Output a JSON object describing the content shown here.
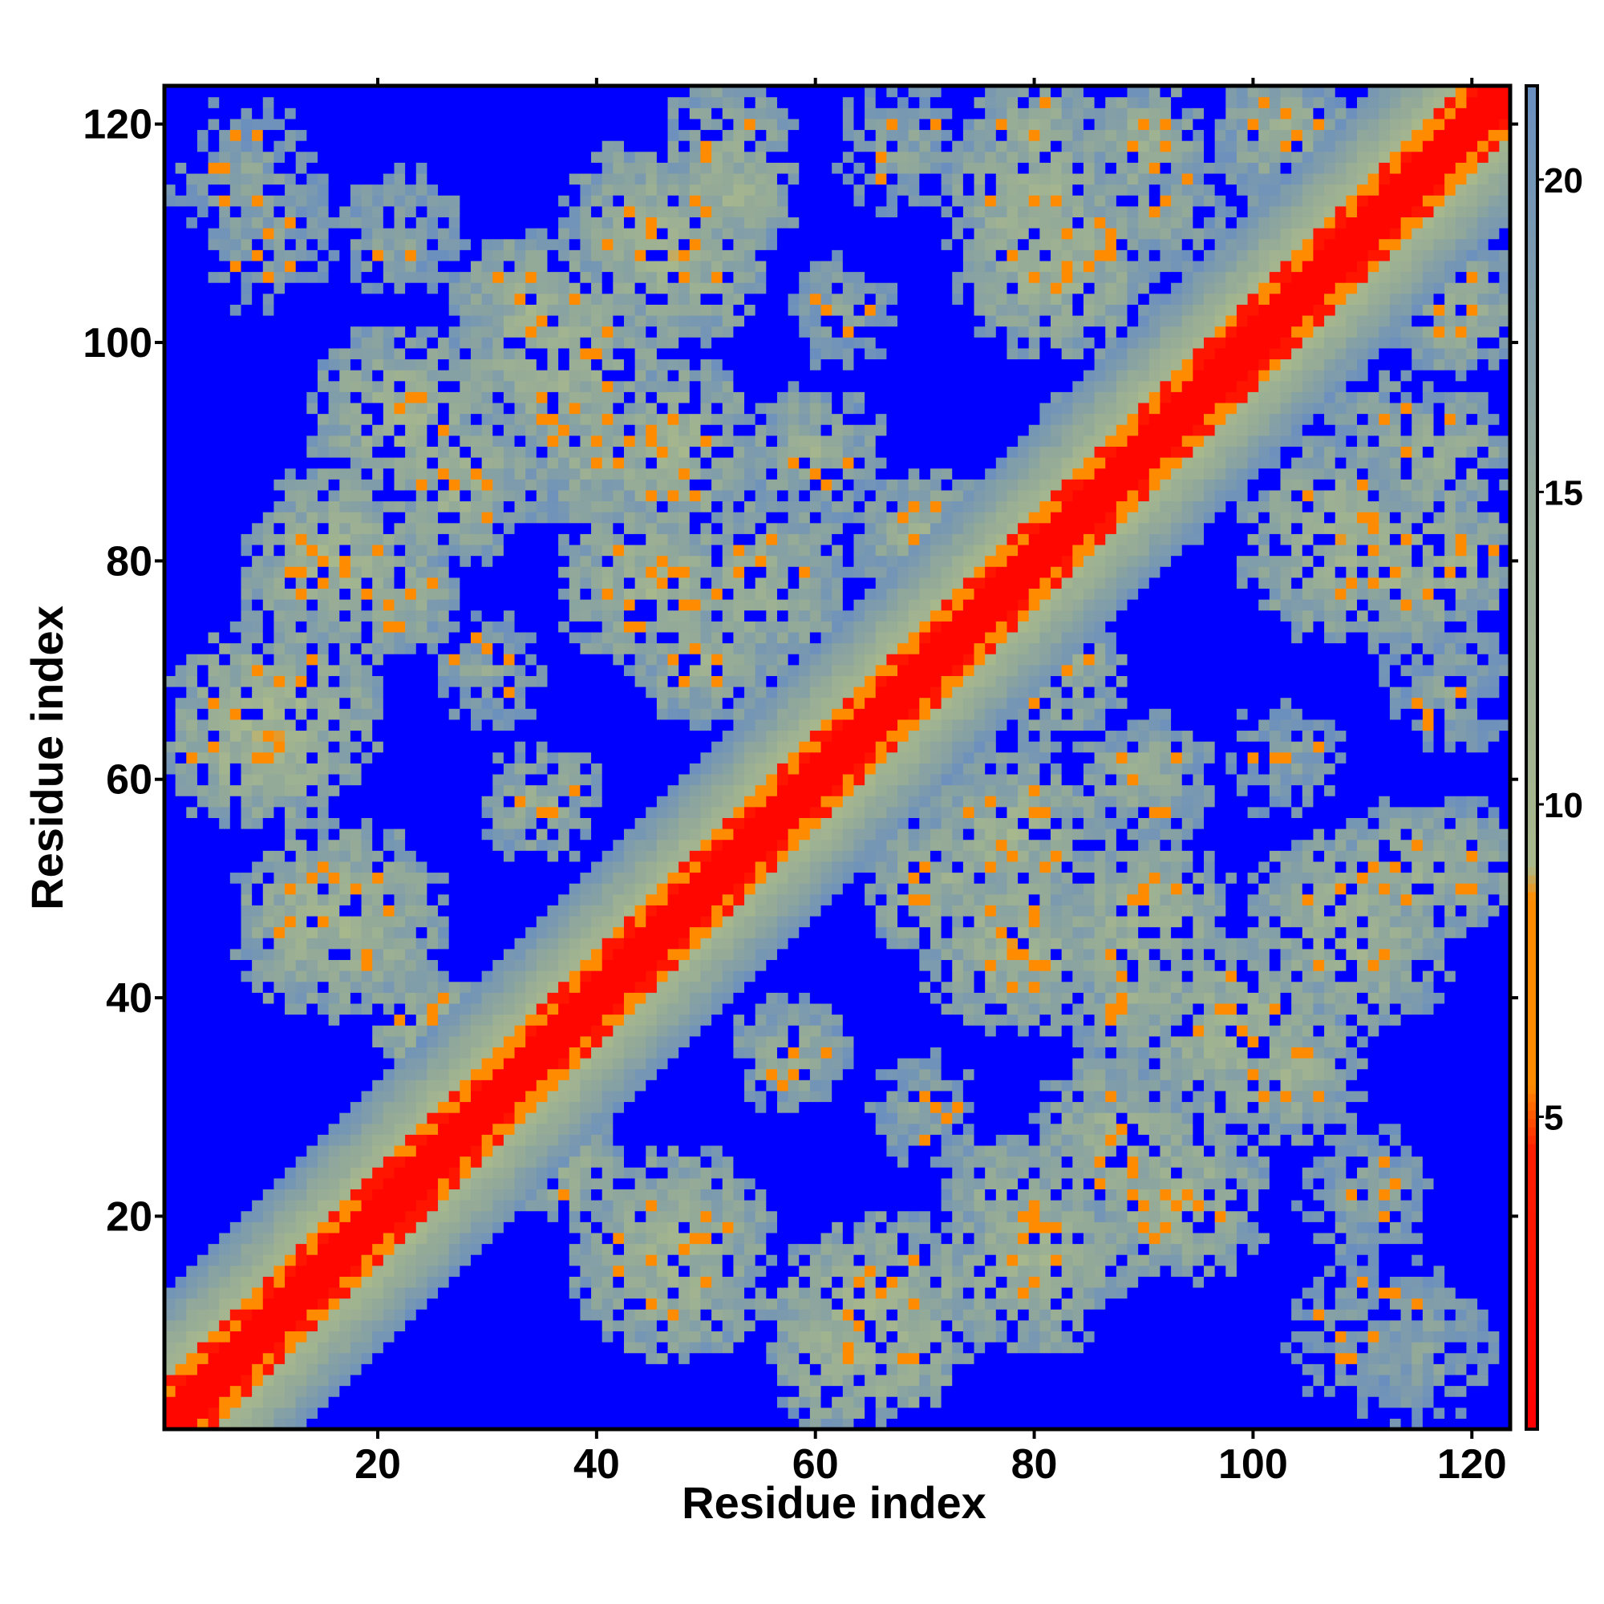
{
  "chart_data": {
    "type": "heatmap",
    "title": "",
    "xlabel": "Residue index",
    "ylabel": "Residue index",
    "n_residues": 123,
    "xlim": [
      1,
      123
    ],
    "ylim": [
      1,
      123
    ],
    "x_ticks": [
      20,
      40,
      60,
      80,
      100,
      120
    ],
    "y_ticks": [
      20,
      40,
      60,
      80,
      100,
      120
    ],
    "x_tick_labels": [
      "20",
      "40",
      "60",
      "80",
      "100",
      "120"
    ],
    "y_tick_labels": [
      "20",
      "40",
      "60",
      "80",
      "100",
      "120"
    ],
    "symmetric": true,
    "value_range": [
      0,
      21.5
    ],
    "colorbar": {
      "ticks": [
        5,
        10,
        15,
        20
      ],
      "tick_labels": [
        "5",
        "10",
        "15",
        "20"
      ],
      "range": [
        0,
        21.5
      ],
      "stops": [
        {
          "value": 0,
          "color": "#ff0000"
        },
        {
          "value": 4.5,
          "color": "#ff2000"
        },
        {
          "value": 5.5,
          "color": "#ff8c00"
        },
        {
          "value": 8.5,
          "color": "#ff8c00"
        },
        {
          "value": 9.0,
          "color": "#a9b98c"
        },
        {
          "value": 15.0,
          "color": "#91a89a"
        },
        {
          "value": 21.5,
          "color": "#6a8fbf"
        }
      ],
      "out_of_range_color": "#0000ff"
    },
    "cutoff": 21.5,
    "diagonal_band": {
      "core": 2,
      "orange": 4,
      "sage_width": 12
    },
    "contact_clusters": [
      {
        "x": 10,
        "y": 65,
        "w": 10,
        "v": 10.5
      },
      {
        "x": 16,
        "y": 80,
        "w": 9,
        "v": 11.5
      },
      {
        "x": 22,
        "y": 93,
        "w": 9,
        "v": 11.5
      },
      {
        "x": 34,
        "y": 103,
        "w": 8,
        "v": 12
      },
      {
        "x": 45,
        "y": 110,
        "w": 9,
        "v": 12
      },
      {
        "x": 52,
        "y": 118,
        "w": 7,
        "v": 13
      },
      {
        "x": 15,
        "y": 47,
        "w": 9,
        "v": 11.5
      },
      {
        "x": 25,
        "y": 37,
        "w": 6,
        "v": 12
      },
      {
        "x": 45,
        "y": 78,
        "w": 9,
        "v": 11.5
      },
      {
        "x": 40,
        "y": 90,
        "w": 8,
        "v": 13
      },
      {
        "x": 60,
        "y": 90,
        "w": 7,
        "v": 13
      },
      {
        "x": 71,
        "y": 82,
        "w": 6,
        "v": 12.5
      },
      {
        "x": 50,
        "y": 71,
        "w": 7,
        "v": 12.5
      },
      {
        "x": 35,
        "y": 58,
        "w": 6,
        "v": 13
      },
      {
        "x": 80,
        "y": 113,
        "w": 9,
        "v": 11.5
      },
      {
        "x": 90,
        "y": 118,
        "w": 6,
        "v": 12
      },
      {
        "x": 103,
        "y": 119,
        "w": 7,
        "v": 13
      },
      {
        "x": 112,
        "y": 105,
        "w": 6,
        "v": 13
      },
      {
        "x": 108,
        "y": 82,
        "w": 10,
        "v": 11.5
      },
      {
        "x": 119,
        "y": 80,
        "w": 6,
        "v": 12
      },
      {
        "x": 85,
        "y": 92,
        "w": 5,
        "v": 12.5
      },
      {
        "x": 82,
        "y": 70,
        "w": 7,
        "v": 12.5
      },
      {
        "x": 78,
        "y": 55,
        "w": 9,
        "v": 12
      },
      {
        "x": 90,
        "y": 47,
        "w": 9,
        "v": 11.5
      },
      {
        "x": 98,
        "y": 37,
        "w": 10,
        "v": 11.5
      },
      {
        "x": 108,
        "y": 47,
        "w": 9,
        "v": 11.5
      },
      {
        "x": 114,
        "y": 52,
        "w": 7,
        "v": 12
      },
      {
        "x": 87,
        "y": 27,
        "w": 8,
        "v": 12
      },
      {
        "x": 77,
        "y": 22,
        "w": 6,
        "v": 12.5
      },
      {
        "x": 67,
        "y": 12,
        "w": 9,
        "v": 11.5
      },
      {
        "x": 47,
        "y": 17,
        "w": 10,
        "v": 11.5
      },
      {
        "x": 62,
        "y": 6,
        "w": 6,
        "v": 12
      },
      {
        "x": 110,
        "y": 22,
        "w": 7,
        "v": 15
      },
      {
        "x": 115,
        "y": 8,
        "w": 8,
        "v": 15.5
      },
      {
        "x": 118,
        "y": 68,
        "w": 7,
        "v": 15.5
      },
      {
        "x": 112,
        "y": 92,
        "w": 7,
        "v": 15
      },
      {
        "x": 10,
        "y": 110,
        "w": 8,
        "v": 16
      },
      {
        "x": 62,
        "y": 103,
        "w": 6,
        "v": 15.5
      },
      {
        "x": 30,
        "y": 70,
        "w": 6,
        "v": 15
      }
    ]
  }
}
